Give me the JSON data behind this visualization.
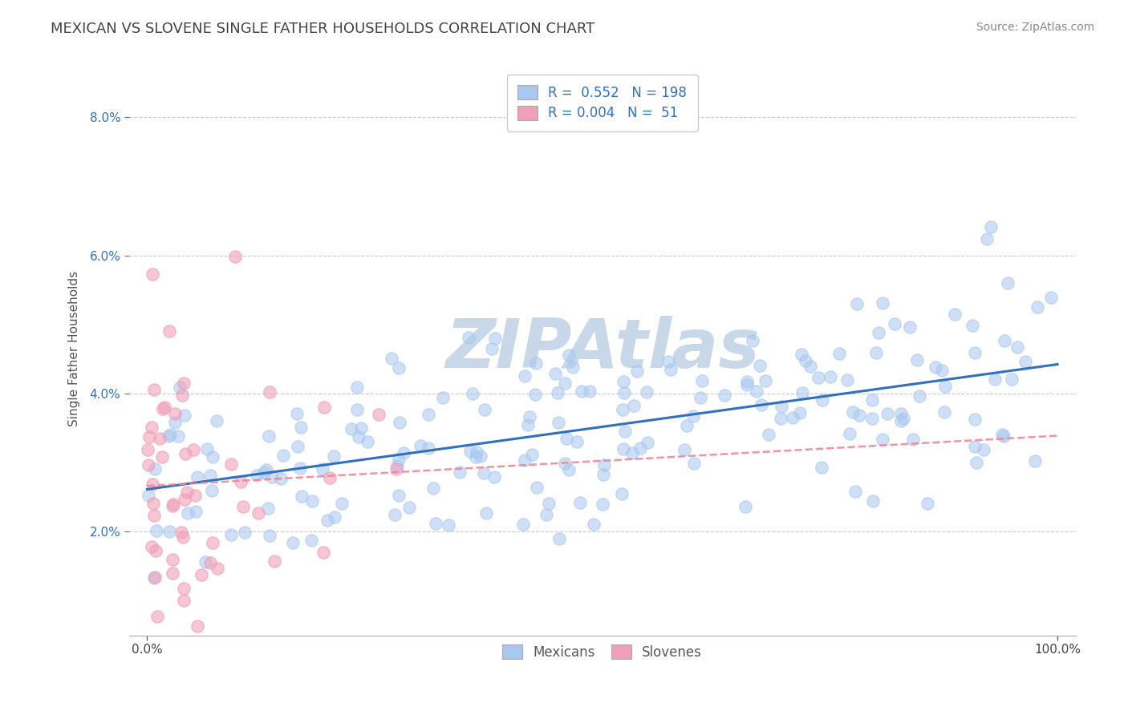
{
  "title": "MEXICAN VS SLOVENE SINGLE FATHER HOUSEHOLDS CORRELATION CHART",
  "source": "Source: ZipAtlas.com",
  "ylabel": "Single Father Households",
  "ytick_labels": [
    "2.0%",
    "4.0%",
    "6.0%",
    "8.0%"
  ],
  "ytick_values": [
    0.02,
    0.04,
    0.06,
    0.08
  ],
  "xlim": [
    -0.02,
    1.02
  ],
  "ylim": [
    0.005,
    0.088
  ],
  "mexican_R": 0.552,
  "mexican_N": 198,
  "slovene_R": 0.004,
  "slovene_N": 51,
  "mexican_color": "#a8c8f0",
  "slovene_color": "#f0a0b8",
  "mexican_line_color": "#3070c0",
  "slovene_line_color": "#f08090",
  "watermark_color": "#c8d8e8",
  "background_color": "#ffffff",
  "grid_color": "#bbbbbb",
  "title_color": "#444444",
  "title_fontsize": 13,
  "axis_label_fontsize": 11,
  "tick_fontsize": 11,
  "source_fontsize": 10,
  "legend_fontsize": 12,
  "legend_label_color": "#3070c0",
  "seed": 7
}
